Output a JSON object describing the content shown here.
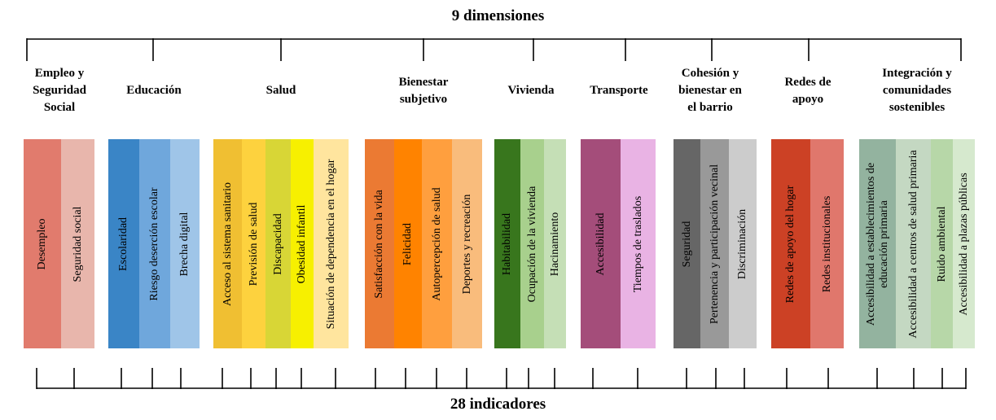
{
  "top_title": "9 dimensiones",
  "bottom_title": "28 indicadores",
  "dimensions": [
    {
      "label_lines": [
        "Empleo y",
        "Seguridad",
        "Social"
      ],
      "indicators": [
        {
          "label": "Desempleo",
          "color": "#E17B6D"
        },
        {
          "label": "Seguridad social",
          "color": "#E8B6AC"
        }
      ]
    },
    {
      "label_lines": [
        "Educación"
      ],
      "indicators": [
        {
          "label": "Escolaridad",
          "color": "#3A85C6"
        },
        {
          "label": "Riesgo deserción escolar",
          "color": "#6FA7DC"
        },
        {
          "label": "Brecha digital",
          "color": "#9FC5E8"
        }
      ]
    },
    {
      "label_lines": [
        "Salud"
      ],
      "indicators": [
        {
          "label": "Acceso al sistema sanitario",
          "color": "#F0BF32"
        },
        {
          "label": "Previsión de salud",
          "color": "#FDD23E"
        },
        {
          "label": "Discapacidad",
          "color": "#D8D636"
        },
        {
          "label": "Obesidad infantil",
          "color": "#F7F000"
        },
        {
          "label": "Situación de dependencia en el hogar",
          "color": "#FFE59E"
        }
      ]
    },
    {
      "label_lines": [
        "Bienestar",
        "subjetivo"
      ],
      "indicators": [
        {
          "label": "Satisfacción con la vida",
          "color": "#EB7A33"
        },
        {
          "label": "Felicidad",
          "color": "#FF8300"
        },
        {
          "label": "Autopercepción de salud",
          "color": "#FF9F3E"
        },
        {
          "label": "Deportes y recreación",
          "color": "#F9BC7C"
        }
      ]
    },
    {
      "label_lines": [
        "Vivienda"
      ],
      "indicators": [
        {
          "label": "Habitabilidad",
          "color": "#38761D"
        },
        {
          "label": "Ocupación de la vivienda",
          "color": "#A8D08D"
        },
        {
          "label": "Hacinamiento",
          "color": "#C5DFB6"
        }
      ]
    },
    {
      "label_lines": [
        "Transporte"
      ],
      "indicators": [
        {
          "label": "Accesibilidad",
          "color": "#A44D7A"
        },
        {
          "label": "Tiempos de traslados",
          "color": "#E9B3E4"
        }
      ]
    },
    {
      "label_lines": [
        "Cohesión y",
        "bienestar en",
        "el barrio"
      ],
      "indicators": [
        {
          "label": "Seguridad",
          "color": "#666666"
        },
        {
          "label": "Pertenencia y participación vecinal",
          "color": "#999999"
        },
        {
          "label": "Discriminación",
          "color": "#CCCCCC"
        }
      ]
    },
    {
      "label_lines": [
        "Redes de",
        "apoyo"
      ],
      "indicators": [
        {
          "label": "Redes de apoyo del hogar",
          "color": "#CC4125"
        },
        {
          "label": "Redes institucionales",
          "color": "#E0776C"
        }
      ]
    },
    {
      "label_lines": [
        "Integración y",
        "comunidades",
        "sostenibles"
      ],
      "indicators": [
        {
          "label": "Accesibilidad a establecimientos de educación primaria",
          "color": "#93B39F"
        },
        {
          "label": "Accesibilidad a centros de salud primaria",
          "color": "#C4D8C2"
        },
        {
          "label": "Ruido ambiental",
          "color": "#B7D7A8"
        },
        {
          "label": "Accesibilidad a plazas públicas",
          "color": "#D6E9CE"
        }
      ]
    }
  ]
}
